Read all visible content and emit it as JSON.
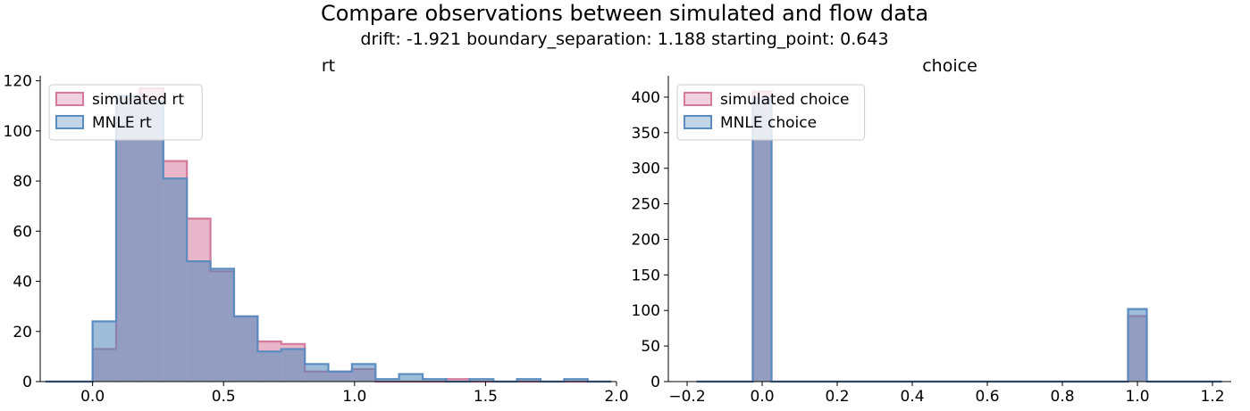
{
  "figure": {
    "title": "Compare observations between simulated and flow data",
    "subtitle": "drift: -1.921  boundary_separation: 1.188  starting_point: 0.643"
  },
  "colors": {
    "sim_fill": "#d47a9d",
    "sim_edge": "#d47a9d",
    "mnle_fill": "#4f86b9",
    "mnle_edge": "#5b8cc0",
    "overlap": "#8a8fb6"
  },
  "chart_data": [
    {
      "type": "histogram",
      "title": "rt",
      "xlim": [
        -0.2,
        2.0
      ],
      "ylim": [
        0,
        122
      ],
      "xticks": [
        0.0,
        0.5,
        1.0,
        1.5,
        2.0
      ],
      "xtick_labels": [
        "0.0",
        "0.5",
        "1.0",
        "1.5",
        "2.0"
      ],
      "yticks": [
        0,
        20,
        40,
        60,
        80,
        100,
        120
      ],
      "ytick_labels": [
        "0",
        "20",
        "40",
        "60",
        "80",
        "100",
        "120"
      ],
      "legend_position": "top-left",
      "bin_edges": [
        -0.18,
        -0.09,
        0.0,
        0.09,
        0.18,
        0.27,
        0.36,
        0.45,
        0.54,
        0.63,
        0.72,
        0.81,
        0.9,
        0.99,
        1.08,
        1.17,
        1.26,
        1.35,
        1.44,
        1.53,
        1.62,
        1.71,
        1.8,
        1.89,
        1.98
      ],
      "series": [
        {
          "name": "simulated rt",
          "values": [
            0,
            0,
            13,
            113,
            117,
            88,
            65,
            44,
            26,
            16,
            15,
            4,
            4,
            5,
            0,
            0,
            0,
            1,
            0,
            0,
            0,
            0,
            0,
            0
          ]
        },
        {
          "name": "MNLE rt",
          "values": [
            0,
            0,
            24,
            114,
            112,
            81,
            48,
            45,
            26,
            12,
            13,
            7,
            4,
            7,
            1,
            3,
            1,
            0,
            1,
            0,
            1,
            0,
            1,
            0
          ]
        }
      ]
    },
    {
      "type": "histogram",
      "title": "choice",
      "xlim": [
        -0.25,
        1.25
      ],
      "ylim": [
        0,
        430
      ],
      "xticks": [
        -0.2,
        0.0,
        0.2,
        0.4,
        0.6,
        0.8,
        1.0,
        1.2
      ],
      "xtick_labels": [
        "−0.2",
        "0.0",
        "0.2",
        "0.4",
        "0.6",
        "0.8",
        "1.0",
        "1.2"
      ],
      "yticks": [
        0,
        50,
        100,
        150,
        200,
        250,
        300,
        350,
        400
      ],
      "ytick_labels": [
        "0",
        "50",
        "100",
        "150",
        "200",
        "250",
        "300",
        "350",
        "400"
      ],
      "legend_position": "top-left",
      "bin_edges": [
        -0.2,
        -0.15,
        -0.1,
        -0.05,
        0.0,
        0.05,
        0.1,
        0.15,
        0.2,
        0.25,
        0.3,
        0.35,
        0.4,
        0.45,
        0.5,
        0.55,
        0.6,
        0.65,
        0.7,
        0.75,
        0.8,
        0.85,
        0.9,
        0.95,
        1.0,
        1.05,
        1.1,
        1.15,
        1.2
      ],
      "bin_edges_note_skip": true,
      "series": [
        {
          "name": "simulated choice",
          "values": [
            0,
            0,
            0,
            408,
            0,
            0,
            0,
            0,
            0,
            0,
            0,
            0,
            0,
            0,
            0,
            0,
            0,
            0,
            0,
            0,
            0,
            0,
            0,
            92,
            0,
            0,
            0,
            0
          ]
        },
        {
          "name": "MNLE choice",
          "values": [
            0,
            0,
            0,
            398,
            0,
            0,
            0,
            0,
            0,
            0,
            0,
            0,
            0,
            0,
            0,
            0,
            0,
            0,
            0,
            0,
            0,
            0,
            0,
            102,
            0,
            0,
            0,
            0
          ]
        }
      ]
    }
  ]
}
